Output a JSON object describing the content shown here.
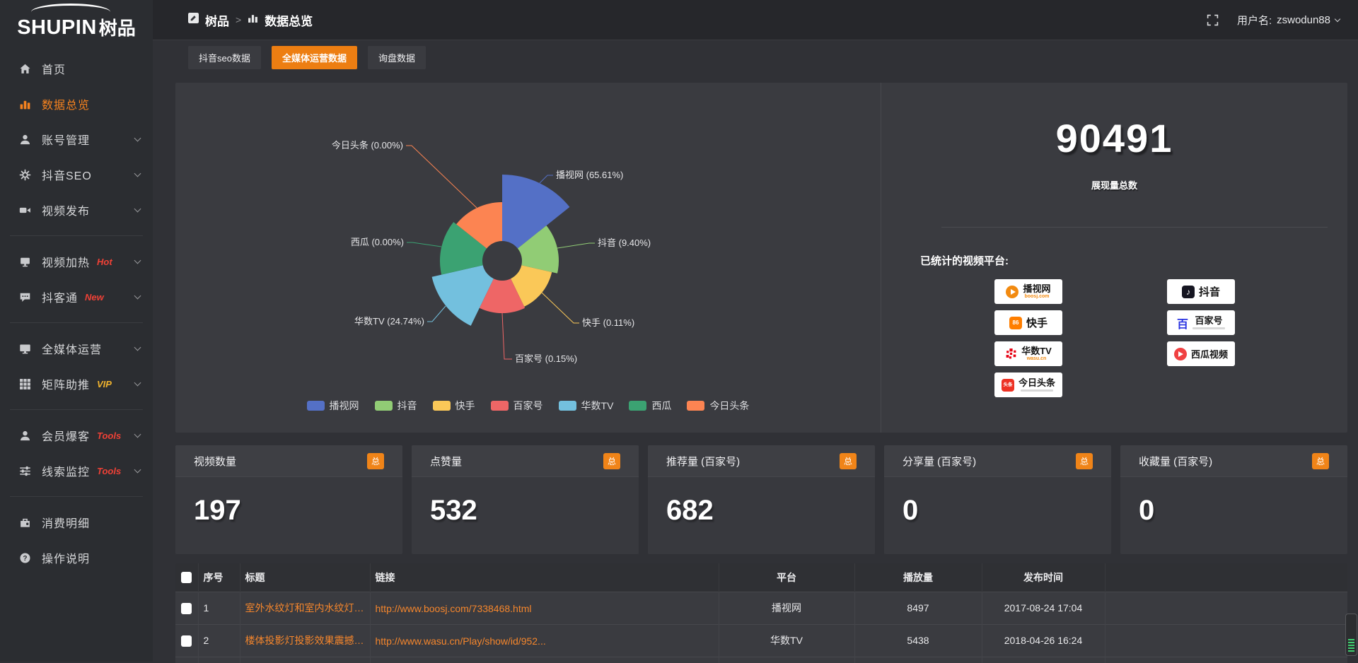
{
  "logo": {
    "en": "SHUPIN",
    "cn": "树品"
  },
  "sidebar": {
    "items": [
      {
        "label": "首页"
      },
      {
        "label": "数据总览"
      },
      {
        "label": "账号管理"
      },
      {
        "label": "抖音SEO"
      },
      {
        "label": "视频发布"
      },
      {
        "label": "视频加热",
        "badge": "Hot"
      },
      {
        "label": "抖客通",
        "badge": "New"
      },
      {
        "label": "全媒体运营"
      },
      {
        "label": "矩阵助推",
        "badge": "VIP"
      },
      {
        "label": "会员爆客",
        "badge": "Tools"
      },
      {
        "label": "线索监控",
        "badge": "Tools"
      },
      {
        "label": "消费明细"
      },
      {
        "label": "操作说明"
      }
    ]
  },
  "topbar": {
    "breadcrumb_root": "树品",
    "breadcrumb_current": "数据总览",
    "user_label": "用户名:",
    "username": "zswodun88"
  },
  "tabs": [
    {
      "label": "抖音seo数据"
    },
    {
      "label": "全媒体运营数据"
    },
    {
      "label": "询盘数据"
    }
  ],
  "stats": {
    "total_value": "90491",
    "total_label": "展现量总数",
    "platforms_title": "已统计的视频平台:"
  },
  "platforms": {
    "left": [
      {
        "name": "播视网",
        "sub": "boosj.com"
      },
      {
        "name": "快手"
      },
      {
        "name": "华数TV",
        "sub": "wasu.cn"
      },
      {
        "name": "今日头条"
      }
    ],
    "right": [
      {
        "name": "抖音"
      },
      {
        "name": "百家号"
      },
      {
        "name": "西瓜视频"
      }
    ]
  },
  "cards": [
    {
      "title": "视频数量",
      "badge": "总",
      "value": "197"
    },
    {
      "title": "点赞量",
      "badge": "总",
      "value": "532"
    },
    {
      "title": "推荐量 (百家号)",
      "badge": "总",
      "value": "682"
    },
    {
      "title": "分享量 (百家号)",
      "badge": "总",
      "value": "0"
    },
    {
      "title": "收藏量 (百家号)",
      "badge": "总",
      "value": "0"
    }
  ],
  "table": {
    "headers": [
      "序号",
      "标题",
      "链接",
      "平台",
      "播放量",
      "发布时间"
    ],
    "rows": [
      {
        "no": "1",
        "title": "室外水纹灯和室内水纹灯的区别和简介",
        "link": "http://www.boosj.com/7338468.html",
        "platform": "播视网",
        "views": "8497",
        "time": "2017-08-24 17:04"
      },
      {
        "no": "2",
        "title": "楼体投影灯投影效果震撼上市",
        "link": "http://www.wasu.cn/Play/show/id/952...",
        "platform": "华数TV",
        "views": "5438",
        "time": "2018-04-26 16:24"
      }
    ]
  },
  "chart_data": {
    "type": "pie",
    "style": "nightingale-rose",
    "unit": "percent",
    "label_format": "{name} ({value}%)",
    "legend_position": "bottom",
    "items": [
      {
        "name": "播视网",
        "value": 65.61,
        "color": "#5470c6"
      },
      {
        "name": "抖音",
        "value": 9.4,
        "color": "#91cc75"
      },
      {
        "name": "快手",
        "value": 0.11,
        "color": "#fac858"
      },
      {
        "name": "百家号",
        "value": 0.15,
        "color": "#ee6666"
      },
      {
        "name": "华数TV",
        "value": 24.74,
        "color": "#73c0de"
      },
      {
        "name": "西瓜",
        "value": 0.0,
        "color": "#3ba272"
      },
      {
        "name": "今日头条",
        "value": 0.0,
        "color": "#fc8452"
      }
    ]
  },
  "colors": {
    "accent": "#ed7e12",
    "link": "#f5862c",
    "hot_badge": "#ef4136",
    "vip_badge": "#f0b32e"
  }
}
